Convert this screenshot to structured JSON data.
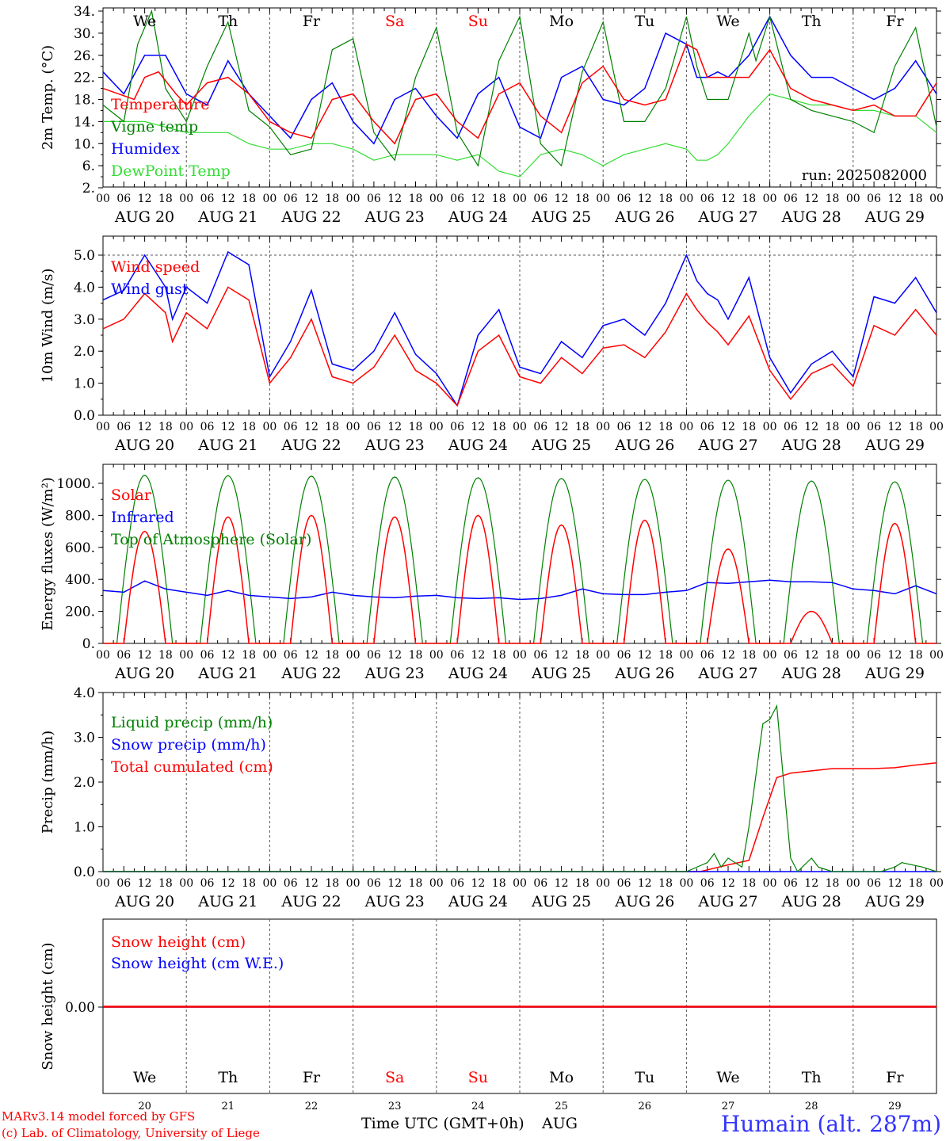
{
  "colors": {
    "red": "#ff0000",
    "green": "#008000",
    "blue": "#0000ff",
    "lightgreen": "#33dd33",
    "axis": "#000000",
    "grid": "#555555"
  },
  "x_axis": {
    "hour_labels": [
      "00",
      "06",
      "12",
      "18"
    ],
    "end_hour_label": "00",
    "dates": [
      "AUG 20",
      "AUG 21",
      "AUG 22",
      "AUG 23",
      "AUG 24",
      "AUG 25",
      "AUG 26",
      "AUG 27",
      "AUG 28",
      "AUG 29"
    ],
    "weekdays": [
      {
        "label": "We",
        "color": "#000000"
      },
      {
        "label": "Th",
        "color": "#000000"
      },
      {
        "label": "Fr",
        "color": "#000000"
      },
      {
        "label": "Sa",
        "color": "#ff0000"
      },
      {
        "label": "Su",
        "color": "#ff0000"
      },
      {
        "label": "Mo",
        "color": "#000000"
      },
      {
        "label": "Tu",
        "color": "#000000"
      },
      {
        "label": "We",
        "color": "#000000"
      },
      {
        "label": "Th",
        "color": "#000000"
      },
      {
        "label": "Fr",
        "color": "#000000"
      }
    ],
    "day_numbers": [
      "20",
      "21",
      "22",
      "23",
      "24",
      "25",
      "26",
      "27",
      "28",
      "29"
    ],
    "bottom_label": "Time UTC (GMT+0h)",
    "month_label": "AUG"
  },
  "chart_data": [
    {
      "type": "line",
      "ylabel": "2m Temp. (°C)",
      "ylim": [
        2,
        34
      ],
      "yticks": [
        "34.",
        "30.",
        "26.",
        "22.",
        "18.",
        "14.",
        "10.",
        "6.",
        "2."
      ],
      "annotation": "run: 2025082000",
      "series": [
        {
          "name": "Temperature",
          "color": "#ff0000",
          "x": [
            0,
            9,
            12,
            16,
            21,
            24,
            30,
            36,
            42,
            48,
            54,
            60,
            66,
            72,
            78,
            84,
            90,
            96,
            102,
            108,
            114,
            120,
            126,
            132,
            138,
            144,
            150,
            156,
            162,
            168,
            171,
            174,
            177,
            180,
            186,
            192,
            198,
            204,
            210,
            216,
            222,
            228,
            234,
            240
          ],
          "values": [
            20,
            18,
            22,
            23,
            19,
            17,
            21,
            22,
            19,
            14,
            12,
            11,
            18,
            19,
            14,
            10,
            18,
            19,
            14,
            11,
            19,
            21,
            15,
            12,
            21,
            24,
            18,
            17,
            18,
            28,
            27,
            22,
            22,
            22,
            22,
            27,
            20,
            18,
            17,
            16,
            17,
            15,
            15,
            21
          ]
        },
        {
          "name": "Vigne temp",
          "color": "#008000",
          "x": [
            0,
            6,
            10,
            12,
            14,
            18,
            24,
            30,
            36,
            42,
            48,
            54,
            60,
            66,
            72,
            78,
            84,
            90,
            96,
            102,
            108,
            114,
            120,
            126,
            132,
            138,
            144,
            150,
            156,
            162,
            168,
            171,
            174,
            177,
            180,
            186,
            188,
            192,
            198,
            204,
            210,
            216,
            222,
            228,
            234,
            240
          ],
          "values": [
            17,
            14,
            28,
            31,
            34,
            20,
            14,
            24,
            32,
            16,
            13,
            8,
            9,
            27,
            29,
            12,
            7,
            22,
            31,
            12,
            6,
            25,
            33,
            10,
            6,
            23,
            32,
            14,
            14,
            20,
            33,
            24,
            18,
            18,
            18,
            30,
            25,
            33,
            18,
            16,
            15,
            14,
            12,
            24,
            31,
            13
          ]
        },
        {
          "name": "Humidex",
          "color": "#0000ff",
          "x": [
            0,
            6,
            12,
            18,
            24,
            30,
            36,
            42,
            48,
            54,
            60,
            66,
            72,
            78,
            84,
            90,
            96,
            102,
            108,
            114,
            120,
            126,
            132,
            138,
            144,
            150,
            156,
            162,
            168,
            171,
            174,
            177,
            180,
            186,
            192,
            198,
            204,
            210,
            216,
            222,
            228,
            234,
            240
          ],
          "values": [
            23,
            19,
            26,
            26,
            19,
            17,
            25,
            19,
            15,
            11,
            18,
            21,
            14,
            10,
            18,
            20,
            15,
            11,
            19,
            22,
            13,
            11,
            22,
            24,
            18,
            17,
            20,
            30,
            28,
            22,
            22,
            23,
            22,
            26,
            33,
            26,
            22,
            22,
            20,
            18,
            20,
            25,
            19
          ]
        },
        {
          "name": "DewPoint Temp",
          "color": "#33dd33",
          "x": [
            0,
            6,
            12,
            18,
            24,
            30,
            36,
            42,
            48,
            54,
            60,
            66,
            72,
            78,
            84,
            90,
            96,
            102,
            108,
            114,
            120,
            126,
            132,
            138,
            144,
            150,
            156,
            162,
            168,
            171,
            174,
            177,
            180,
            186,
            192,
            198,
            204,
            210,
            216,
            222,
            228,
            234,
            240
          ],
          "values": [
            14,
            14,
            14,
            13,
            12,
            12,
            12,
            10,
            9,
            9,
            10,
            10,
            9,
            7,
            8,
            8,
            8,
            7,
            8,
            5,
            4,
            8,
            9,
            8,
            6,
            8,
            9,
            10,
            9,
            7,
            7,
            8,
            10,
            15,
            19,
            18,
            17,
            17,
            16,
            16,
            15,
            15,
            12
          ]
        }
      ]
    },
    {
      "type": "line",
      "ylabel": "10m Wind (m/s)",
      "ylim": [
        0,
        5.5
      ],
      "yticks": [
        "5.0",
        "4.0",
        "3.0",
        "2.0",
        "1.0",
        "0.0"
      ],
      "reference_line": 5.0,
      "series": [
        {
          "name": "Wind speed",
          "color": "#ff0000",
          "x": [
            0,
            6,
            12,
            18,
            20,
            24,
            30,
            36,
            42,
            48,
            54,
            60,
            66,
            72,
            78,
            84,
            90,
            96,
            102,
            108,
            114,
            120,
            126,
            132,
            138,
            144,
            150,
            156,
            162,
            168,
            171,
            174,
            177,
            180,
            186,
            192,
            198,
            204,
            210,
            216,
            222,
            228,
            234,
            240
          ],
          "values": [
            2.7,
            3.0,
            3.8,
            3.2,
            2.3,
            3.2,
            2.7,
            4.0,
            3.6,
            1.0,
            1.8,
            3.0,
            1.2,
            1.0,
            1.5,
            2.5,
            1.4,
            1.0,
            0.3,
            2.0,
            2.5,
            1.2,
            1.0,
            1.8,
            1.3,
            2.1,
            2.2,
            1.8,
            2.6,
            3.8,
            3.3,
            2.9,
            2.6,
            2.2,
            3.1,
            1.4,
            0.5,
            1.3,
            1.6,
            0.9,
            2.8,
            2.5,
            3.3,
            2.5
          ]
        },
        {
          "name": "Wind gust",
          "color": "#0000ff",
          "x": [
            0,
            6,
            12,
            18,
            20,
            24,
            30,
            36,
            42,
            48,
            54,
            60,
            66,
            72,
            78,
            84,
            90,
            96,
            102,
            108,
            114,
            120,
            126,
            132,
            138,
            144,
            150,
            156,
            162,
            168,
            171,
            174,
            177,
            180,
            186,
            192,
            198,
            204,
            210,
            216,
            222,
            228,
            234,
            240
          ],
          "values": [
            3.6,
            3.9,
            5.0,
            4.0,
            3.0,
            4.0,
            3.5,
            5.1,
            4.7,
            1.2,
            2.3,
            3.9,
            1.6,
            1.4,
            2.0,
            3.2,
            1.9,
            1.3,
            0.3,
            2.5,
            3.3,
            1.5,
            1.3,
            2.3,
            1.8,
            2.8,
            3.0,
            2.5,
            3.5,
            5.0,
            4.2,
            3.8,
            3.6,
            3.0,
            4.3,
            1.8,
            0.7,
            1.6,
            2.0,
            1.2,
            3.7,
            3.5,
            4.3,
            3.2
          ]
        }
      ]
    },
    {
      "type": "line",
      "ylabel": "Energy fluxes (W/m²)",
      "ylim": [
        0,
        1100
      ],
      "yticks": [
        "1000.",
        "800.",
        "600.",
        "400.",
        "200.",
        "0."
      ],
      "series": [
        {
          "name": "Solar",
          "color": "#ff0000",
          "daily_peaks": [
            700,
            790,
            800,
            790,
            800,
            740,
            770,
            590,
            200,
            750
          ]
        },
        {
          "name": "Infrared",
          "color": "#0000ff",
          "x": [
            0,
            6,
            12,
            18,
            24,
            30,
            36,
            42,
            48,
            54,
            60,
            66,
            72,
            78,
            84,
            90,
            96,
            102,
            108,
            114,
            120,
            126,
            132,
            138,
            144,
            150,
            156,
            162,
            168,
            174,
            180,
            186,
            192,
            198,
            204,
            210,
            216,
            222,
            228,
            234,
            240
          ],
          "values": [
            330,
            320,
            390,
            340,
            320,
            300,
            330,
            300,
            290,
            280,
            290,
            320,
            300,
            290,
            285,
            295,
            300,
            285,
            280,
            285,
            275,
            280,
            300,
            340,
            310,
            305,
            305,
            320,
            330,
            380,
            375,
            385,
            395,
            385,
            385,
            380,
            340,
            330,
            310,
            360,
            310
          ]
        },
        {
          "name": "Top of Atmosphere (Solar)",
          "color": "#008000",
          "daily_peaks": [
            1050,
            1048,
            1045,
            1040,
            1035,
            1030,
            1025,
            1020,
            1015,
            1010
          ]
        }
      ]
    },
    {
      "type": "line",
      "ylabel": "Precip (mm/h)",
      "ylim": [
        0,
        4.0
      ],
      "yticks": [
        "4.0",
        "3.0",
        "2.0",
        "1.0",
        "0.0"
      ],
      "series": [
        {
          "name": "Liquid precip (mm/h)",
          "color": "#008000",
          "x": [
            0,
            168,
            174,
            176,
            178,
            180,
            184,
            186,
            190,
            192,
            194,
            196,
            198,
            200,
            204,
            206,
            210,
            224,
            228,
            230,
            236,
            240
          ],
          "values": [
            0,
            0,
            0.2,
            0.4,
            0.1,
            0.3,
            0.1,
            1.0,
            3.3,
            3.4,
            3.7,
            2.0,
            0.3,
            0,
            0.3,
            0.1,
            0,
            0,
            0.1,
            0.2,
            0.1,
            0
          ]
        },
        {
          "name": "Snow precip (mm/h)",
          "color": "#0000ff",
          "x": [
            0,
            240
          ],
          "values": [
            0,
            0
          ]
        },
        {
          "name": "Total cumulated (cm)",
          "color": "#ff0000",
          "x": [
            0,
            172,
            180,
            186,
            190,
            194,
            198,
            204,
            210,
            216,
            222,
            228,
            234,
            240
          ],
          "values": [
            0,
            0,
            0.15,
            0.25,
            1.2,
            2.1,
            2.2,
            2.25,
            2.3,
            2.3,
            2.3,
            2.32,
            2.38,
            2.43
          ]
        }
      ]
    },
    {
      "type": "line",
      "ylabel": "Snow height (cm)",
      "yticks": [
        "0.00"
      ],
      "series": [
        {
          "name": "Snow height (cm)",
          "color": "#ff0000",
          "x": [
            0,
            240
          ],
          "values": [
            0,
            0
          ]
        },
        {
          "name": "Snow height (cm W.E.)",
          "color": "#0000ff",
          "x": [
            0,
            240
          ],
          "values": [
            0,
            0
          ]
        }
      ]
    }
  ],
  "footer": {
    "model_line": "MARv3.14 model forced by GFS",
    "credit_line": "(c) Lab. of Climatology, University of Liege",
    "station": "Humain (alt. 287m)"
  }
}
